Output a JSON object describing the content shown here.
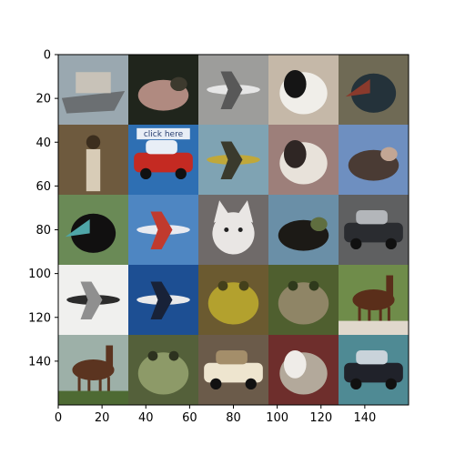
{
  "figure": {
    "type": "image-grid",
    "grid": {
      "rows": 5,
      "cols": 5
    },
    "x_ticks": [
      "0",
      "20",
      "40",
      "60",
      "80",
      "100",
      "120",
      "140"
    ],
    "y_ticks": [
      "0",
      "20",
      "40",
      "60",
      "80",
      "100",
      "120",
      "140"
    ],
    "x_range": [
      0,
      160
    ],
    "y_range": [
      0,
      160
    ],
    "tiles": [
      {
        "subject": "ship",
        "bg": "#9aa8b0",
        "fg": "#6b6f72",
        "fg2": "#c8c2b8"
      },
      {
        "subject": "animal",
        "bg": "#20251c",
        "fg": "#b08a80",
        "fg2": "#3d3a2e"
      },
      {
        "subject": "airplane",
        "bg": "#9d9d9b",
        "fg": "#e6e6e6",
        "fg2": "#585858"
      },
      {
        "subject": "dog",
        "bg": "#c5b8a8",
        "fg": "#151515",
        "fg2": "#f0eee9"
      },
      {
        "subject": "bird",
        "bg": "#6f6a55",
        "fg": "#24323a",
        "fg2": "#8a3a2c"
      },
      {
        "subject": "person",
        "bg": "#6e5a3e",
        "fg": "#d8ccb7",
        "fg2": "#3c2e1e"
      },
      {
        "subject": "truck",
        "bg": "#2e6fb3",
        "fg": "#c42a22",
        "fg2": "#e8eef6",
        "label": "click here"
      },
      {
        "subject": "airplane",
        "bg": "#7fa3b3",
        "fg": "#c0a83a",
        "fg2": "#3a3a2d"
      },
      {
        "subject": "dog",
        "bg": "#9d7f7a",
        "fg": "#2f2624",
        "fg2": "#e8e2da"
      },
      {
        "subject": "animal",
        "bg": "#6e8fc0",
        "fg": "#4a3b34",
        "fg2": "#c2a694"
      },
      {
        "subject": "bird",
        "bg": "#6a8a56",
        "fg": "#111010",
        "fg2": "#4fa6a8"
      },
      {
        "subject": "airplane",
        "bg": "#4e86c2",
        "fg": "#e8eaf0",
        "fg2": "#c03a2e"
      },
      {
        "subject": "cat",
        "bg": "#6f6a69",
        "fg": "#e9e6e4",
        "fg2": "#9a9590"
      },
      {
        "subject": "animal",
        "bg": "#6a8fa7",
        "fg": "#1c1a16",
        "fg2": "#5f6e3f"
      },
      {
        "subject": "car",
        "bg": "#5f6061",
        "fg": "#2a2c30",
        "fg2": "#b3b6ba"
      },
      {
        "subject": "airplane",
        "bg": "#f0f0ee",
        "fg": "#2c2c2c",
        "fg2": "#8f8f8f"
      },
      {
        "subject": "airplane",
        "bg": "#1d4f93",
        "fg": "#e9e9ea",
        "fg2": "#182238"
      },
      {
        "subject": "frog",
        "bg": "#6b5a30",
        "fg": "#b3a12e",
        "fg2": "#44401b"
      },
      {
        "subject": "frog",
        "bg": "#4f5f2f",
        "fg": "#8f8566",
        "fg2": "#2f3a1c"
      },
      {
        "subject": "horse",
        "bg": "#6f8c4a",
        "fg": "#5a2e1a",
        "fg2": "#e0d8cc"
      },
      {
        "subject": "horse",
        "bg": "#9db0a8",
        "fg": "#5b3420",
        "fg2": "#4e6a33"
      },
      {
        "subject": "frog",
        "bg": "#54603a",
        "fg": "#8d9a68",
        "fg2": "#2d321f"
      },
      {
        "subject": "car",
        "bg": "#6b5b4a",
        "fg": "#eee5cf",
        "fg2": "#a48e6a"
      },
      {
        "subject": "dog",
        "bg": "#6e2e2c",
        "fg": "#efece8",
        "fg2": "#b3a99b"
      },
      {
        "subject": "car",
        "bg": "#4f8a94",
        "fg": "#20222a",
        "fg2": "#c9d3da"
      }
    ]
  }
}
